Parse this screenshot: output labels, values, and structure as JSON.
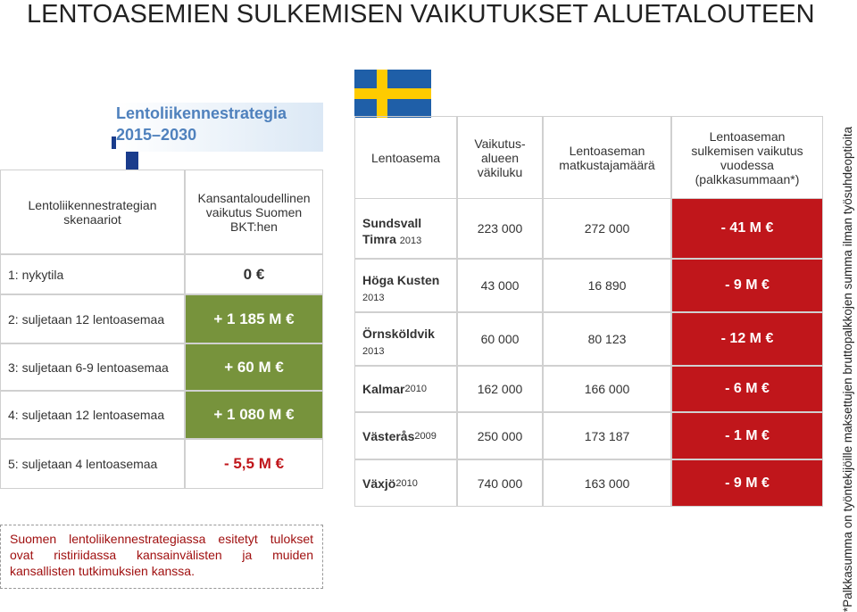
{
  "title": "LENTOASEMIEN SULKEMISEN VAIKUTUKSET ALUETALOUTEEN",
  "strategy": {
    "line1": "Lentoliikennestrategia",
    "line2": "2015–2030"
  },
  "finland_table": {
    "headers": [
      "Lentoliikennestrategian skenaariot",
      "Kansantaloudellinen vaikutus Suomen BKT:hen"
    ],
    "rows": [
      [
        "1:  nykytila",
        "0 €"
      ],
      [
        "2: suljetaan 12 lentoasemaa",
        "+ 1 185 M €"
      ],
      [
        "3: suljetaan 6-9 lentoasemaa",
        "+ 60 M €"
      ],
      [
        "4: suljetaan 12 lentoasemaa",
        "+ 1 080 M €"
      ],
      [
        "5: suljetaan 4 lentoasemaa",
        "- 5,5 M €"
      ]
    ]
  },
  "note": "Suomen lentoliikennestrategiassa esitetyt tulokset ovat ristiriidassa kansainvälisten ja muiden kansallisten tutkimuksien kanssa.",
  "sweden_table": {
    "headers": [
      "Lentoasema",
      "Vaikutus-alueen väkiluku",
      "Lentoaseman matkustajamäärä",
      "Lentoaseman sulkemisen vaikutus vuodessa (palkkasummaan*)"
    ],
    "rows": [
      {
        "name": "Sundsvall Timra",
        "year": "2013",
        "population": "223 000",
        "passengers": "272 000",
        "effect": "- 41 M €"
      },
      {
        "name": "Höga Kusten",
        "year": "2013",
        "population": "43 000",
        "passengers": "16 890",
        "effect": "- 9 M €"
      },
      {
        "name": "Örnsköldvik",
        "year": "2013",
        "population": "60 000",
        "passengers": "80 123",
        "effect": "- 12 M €"
      },
      {
        "name": "Kalmar",
        "year": "2010",
        "population": "162 000",
        "passengers": "166 000",
        "effect": "- 6 M €"
      },
      {
        "name": "Västerås",
        "year": "2009",
        "population": "250 000",
        "passengers": "173 187",
        "effect": "- 1 M €"
      },
      {
        "name": "Växjö",
        "year": "2010",
        "population": "740 000",
        "passengers": "163 000",
        "effect": "- 9 M €"
      }
    ]
  },
  "footnote": "*Palkkasumma on työntekijöille maksettujen bruttopalkkojen summa ilman työsuhdeoptioita"
}
